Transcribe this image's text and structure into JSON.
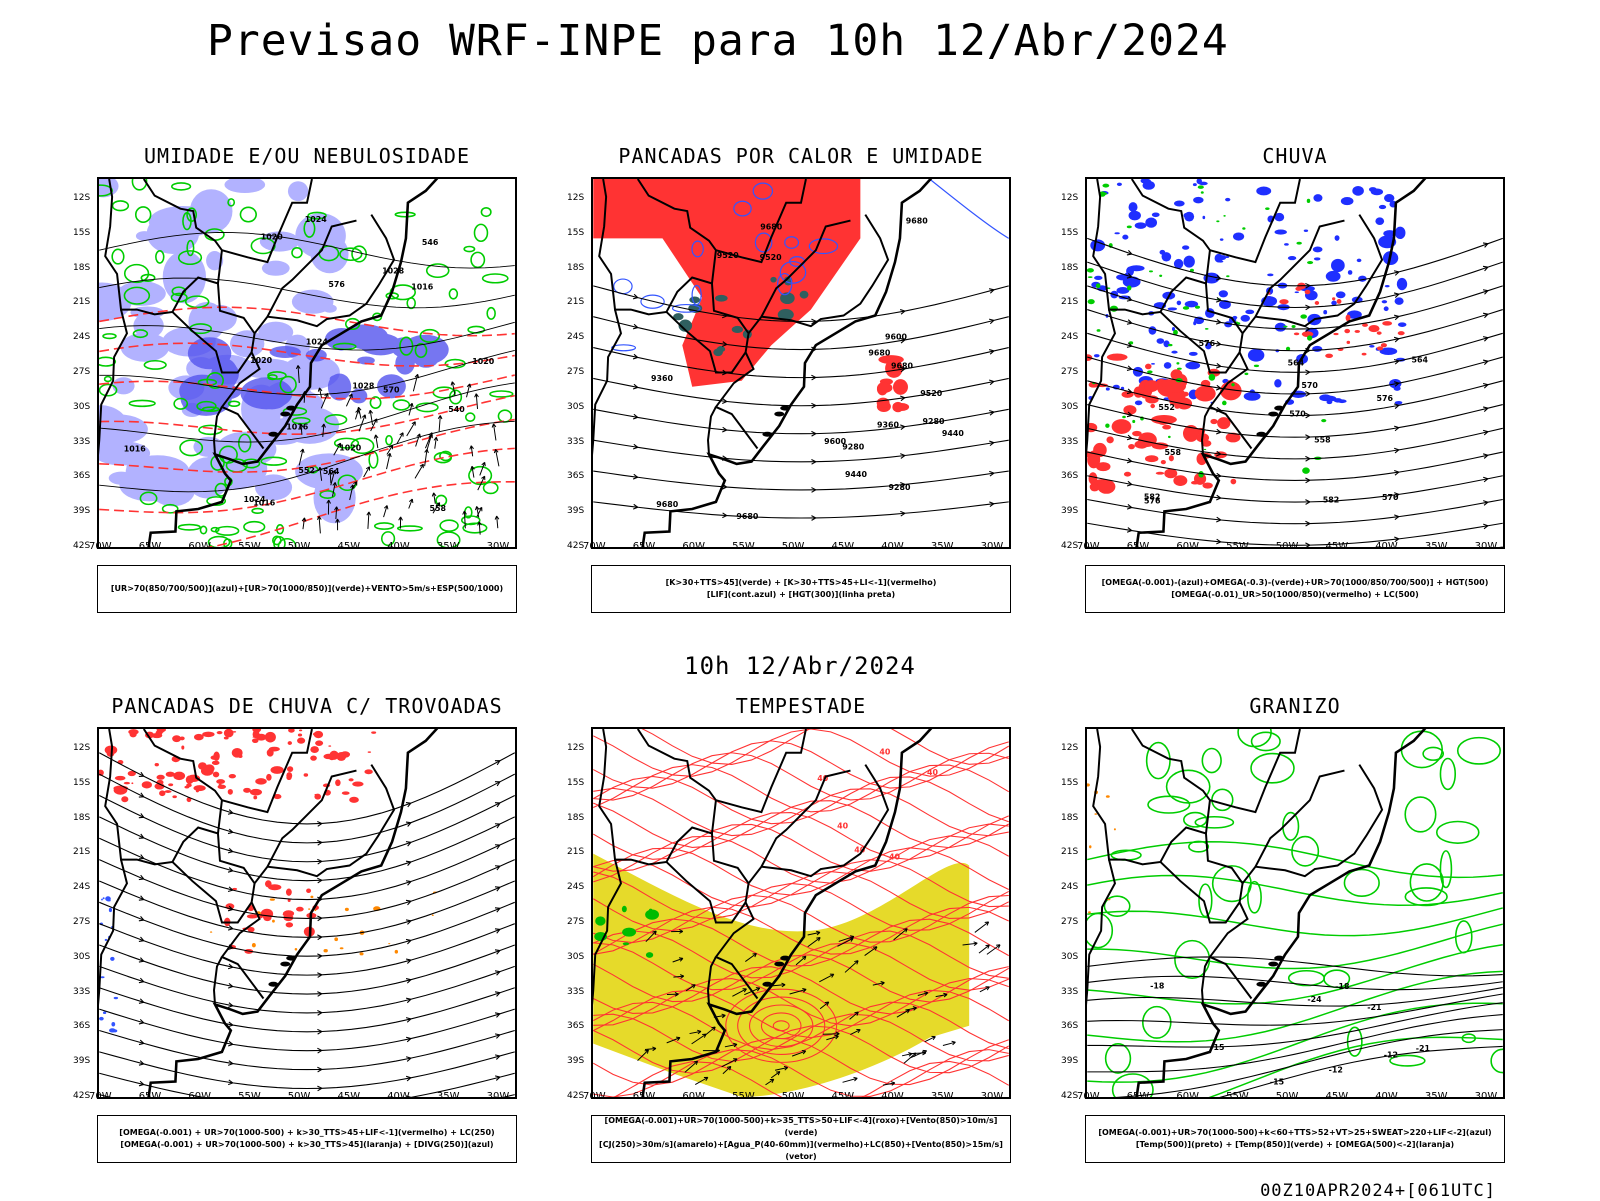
{
  "title": "Previsao WRF-INPE  para 10h 12/Abr/2024",
  "mid_label": "10h 12/Abr/2024",
  "footer": "00Z10APR2024+[061UTC]",
  "lat_labels": [
    "12S",
    "15S",
    "18S",
    "21S",
    "24S",
    "27S",
    "30S",
    "33S",
    "36S",
    "39S",
    "42S"
  ],
  "lon_labels": [
    "70W",
    "65W",
    "60W",
    "55W",
    "50W",
    "45W",
    "40W",
    "35W",
    "30W"
  ],
  "panels": [
    {
      "key": "umidade",
      "title": "UMIDADE E/OU NEBULOSIDADE",
      "legend": [
        "[UR>70(850/700/500)](azul)+[UR>70(1000/850)](verde)+VENTO>5m/s+ESP(500/1000)"
      ],
      "colors": {
        "humid_high": "#9999ff",
        "humid_high_dark": "#5555ee",
        "humid_low": "#00cc00",
        "thickness": "#ff3333",
        "pressure": "#000000"
      },
      "contour_labels": [
        "1016",
        "1016",
        "1016",
        "1020",
        "1016",
        "1020",
        "1024",
        "1020",
        "1024",
        "1028",
        "1028",
        "1024",
        "1020",
        "576",
        "570",
        "564",
        "558",
        "552",
        "546",
        "540"
      ]
    },
    {
      "key": "pancadas_calor",
      "title": "PANCADAS POR CALOR E UMIDADE",
      "legend": [
        "[K>30+TTS>45](verde) + [K>30+TTS>45+LI<-1](vermelho)",
        "[LIF](cont.azul) + [HGT(300)](linha preta)"
      ],
      "colors": {
        "instab_high": "#ff3333",
        "instab": "#2f5f5f",
        "lif": "#3355ff",
        "hgt": "#000000"
      },
      "contour_labels": [
        "9680",
        "9680",
        "9680",
        "9680",
        "9680",
        "9680",
        "9600",
        "9520",
        "9520",
        "9440",
        "9600",
        "9520",
        "9440",
        "9360",
        "9280",
        "9360",
        "9280",
        "9280"
      ]
    },
    {
      "key": "chuva",
      "title": "CHUVA",
      "legend": [
        "[OMEGA(-0.001)-(azul)+OMEGA(-0.3)-(verde)+UR>70(1000/850/700/500)] + HGT(500)",
        "[OMEGA(-0.01)_UR>50(1000/850)(vermelho) + LC(500)"
      ],
      "colors": {
        "omega_blue": "#1f2fff",
        "omega_green": "#00cc00",
        "omega_red": "#ff3333",
        "streamline": "#000000"
      },
      "contour_labels": [
        "582",
        "576",
        "570",
        "582",
        "576",
        "570",
        "564",
        "558",
        "552",
        "576",
        "570",
        "564",
        "558"
      ]
    },
    {
      "key": "trovoadas",
      "title": "PANCADAS DE CHUVA C/ TROVOADAS",
      "legend": [
        "[OMEGA(-0.001) + UR>70(1000-500) + k>30_TTS>45+LIF<-1](vermelho) + LC(250)",
        "[OMEGA(-0.001) + UR>70(1000-500) + k>30_TTS>45](laranja) + [DIVG(250)](azul)"
      ],
      "colors": {
        "red": "#ff3333",
        "orange": "#ff8800",
        "blue": "#3355ff",
        "streamline": "#000000"
      }
    },
    {
      "key": "tempestade",
      "title": "TEMPESTADE",
      "legend": [
        "[OMEGA(-0.001)+UR>70(1000-500)+k>35_TTS>50+LIF<-4](roxo)+[Vento(850)>10m/s](verde)",
        "[CJ(250)>30m/s](amarelo)+[Agua_P(40-60mm)](vermelho)+LC(850)+[Vento(850)>15m/s](vetor)"
      ],
      "colors": {
        "jet": "#e6da2a",
        "pw": "#ff3333",
        "wind850": "#00bb00",
        "vector": "#000000"
      },
      "contour_labels": [
        "40",
        "40",
        "40",
        "40",
        "40",
        "40"
      ]
    },
    {
      "key": "granizo",
      "title": "GRANIZO",
      "legend": [
        "[OMEGA(-0.001)+UR>70(1000-500)+k<60+TTS>52+VT>25+SWEAT>220+LIF<-2](azul)",
        "[Temp(500)](preto) + [Temp(850)](verde) + [OMEGA(500)<-2](laranja)"
      ],
      "colors": {
        "temp500": "#000000",
        "temp850": "#00cc00",
        "omega": "#ff8800"
      },
      "contour_labels": [
        "-12",
        "-15",
        "-18",
        "-21",
        "-24",
        "-21",
        "-18",
        "-15",
        "-12"
      ]
    }
  ]
}
